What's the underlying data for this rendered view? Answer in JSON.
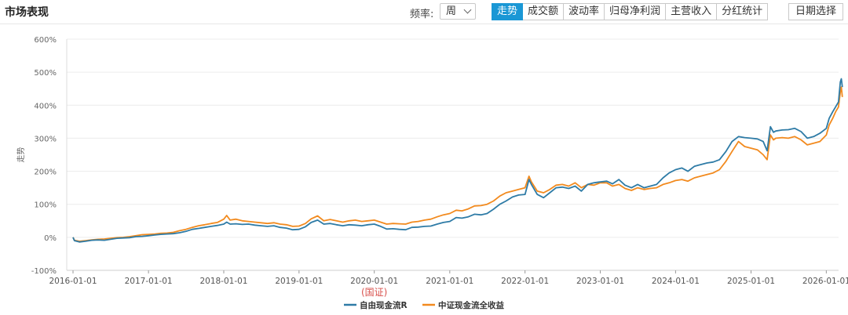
{
  "header": {
    "title": "市场表现",
    "freq_label": "频率:",
    "freq_value": "周",
    "tabs": [
      {
        "label": "走势",
        "active": true
      },
      {
        "label": "成交额",
        "active": false
      },
      {
        "label": "波动率",
        "active": false
      },
      {
        "label": "归母净利润",
        "active": false
      },
      {
        "label": "主营收入",
        "active": false
      },
      {
        "label": "分红统计",
        "active": false
      }
    ],
    "date_button": "日期选择"
  },
  "colors": {
    "series1": "#2e7ba6",
    "series2": "#f28a1e",
    "accent": "#1a97d5"
  },
  "chart_data": {
    "type": "line",
    "ylabel": "走势",
    "ylim": [
      -100,
      600
    ],
    "yticks": [
      "-100%",
      "0%",
      "100%",
      "200%",
      "300%",
      "400%",
      "500%",
      "600%"
    ],
    "xticks": [
      "2016-01-01",
      "2017-01-01",
      "2018-01-01",
      "2019-01-01",
      "2020-01-01",
      "2021-01-01",
      "2022-01-01",
      "2023-01-01",
      "2024-01-01",
      "2025-01-01",
      "2026-01-01"
    ],
    "xlim": [
      "2016-01-01",
      "2026-04-01"
    ],
    "annotation": "(国证)",
    "legend_position": "bottom-center",
    "series": [
      {
        "name": "自由现金流R",
        "color": "#2e7ba6",
        "points": [
          [
            "2016-01-01",
            0
          ],
          [
            "2016-01-08",
            -10
          ],
          [
            "2016-02-01",
            -14
          ],
          [
            "2016-03-01",
            -12
          ],
          [
            "2016-04-01",
            -9
          ],
          [
            "2016-05-01",
            -8
          ],
          [
            "2016-06-01",
            -9
          ],
          [
            "2016-07-01",
            -6
          ],
          [
            "2016-08-01",
            -3
          ],
          [
            "2016-09-01",
            -2
          ],
          [
            "2016-10-01",
            -1
          ],
          [
            "2016-11-01",
            2
          ],
          [
            "2016-12-01",
            3
          ],
          [
            "2017-01-01",
            5
          ],
          [
            "2017-02-01",
            7
          ],
          [
            "2017-03-01",
            9
          ],
          [
            "2017-04-01",
            10
          ],
          [
            "2017-05-01",
            11
          ],
          [
            "2017-06-01",
            14
          ],
          [
            "2017-07-01",
            18
          ],
          [
            "2017-08-01",
            24
          ],
          [
            "2017-09-01",
            27
          ],
          [
            "2017-10-01",
            30
          ],
          [
            "2017-11-01",
            33
          ],
          [
            "2017-12-01",
            36
          ],
          [
            "2018-01-01",
            40
          ],
          [
            "2018-01-15",
            46
          ],
          [
            "2018-02-01",
            40
          ],
          [
            "2018-03-01",
            41
          ],
          [
            "2018-04-01",
            39
          ],
          [
            "2018-05-01",
            40
          ],
          [
            "2018-06-01",
            37
          ],
          [
            "2018-07-01",
            35
          ],
          [
            "2018-08-01",
            33
          ],
          [
            "2018-09-01",
            35
          ],
          [
            "2018-10-01",
            30
          ],
          [
            "2018-11-01",
            28
          ],
          [
            "2018-12-01",
            23
          ],
          [
            "2019-01-01",
            24
          ],
          [
            "2019-02-01",
            32
          ],
          [
            "2019-03-01",
            45
          ],
          [
            "2019-04-01",
            52
          ],
          [
            "2019-05-01",
            40
          ],
          [
            "2019-06-01",
            42
          ],
          [
            "2019-07-01",
            38
          ],
          [
            "2019-08-01",
            35
          ],
          [
            "2019-09-01",
            38
          ],
          [
            "2019-10-01",
            37
          ],
          [
            "2019-11-01",
            35
          ],
          [
            "2019-12-01",
            38
          ],
          [
            "2020-01-01",
            40
          ],
          [
            "2020-02-01",
            33
          ],
          [
            "2020-03-01",
            25
          ],
          [
            "2020-04-01",
            26
          ],
          [
            "2020-05-01",
            24
          ],
          [
            "2020-06-01",
            23
          ],
          [
            "2020-07-01",
            30
          ],
          [
            "2020-08-01",
            31
          ],
          [
            "2020-09-01",
            33
          ],
          [
            "2020-10-01",
            34
          ],
          [
            "2020-11-01",
            40
          ],
          [
            "2020-12-01",
            45
          ],
          [
            "2021-01-01",
            48
          ],
          [
            "2021-02-01",
            60
          ],
          [
            "2021-03-01",
            58
          ],
          [
            "2021-04-01",
            62
          ],
          [
            "2021-05-01",
            70
          ],
          [
            "2021-06-01",
            68
          ],
          [
            "2021-07-01",
            72
          ],
          [
            "2021-08-01",
            85
          ],
          [
            "2021-09-01",
            100
          ],
          [
            "2021-10-01",
            110
          ],
          [
            "2021-11-01",
            122
          ],
          [
            "2021-12-01",
            128
          ],
          [
            "2022-01-01",
            130
          ],
          [
            "2022-01-20",
            175
          ],
          [
            "2022-02-01",
            160
          ],
          [
            "2022-03-01",
            130
          ],
          [
            "2022-04-01",
            120
          ],
          [
            "2022-05-01",
            135
          ],
          [
            "2022-06-01",
            150
          ],
          [
            "2022-07-01",
            152
          ],
          [
            "2022-08-01",
            148
          ],
          [
            "2022-09-01",
            155
          ],
          [
            "2022-10-01",
            140
          ],
          [
            "2022-11-01",
            160
          ],
          [
            "2022-12-01",
            165
          ],
          [
            "2023-01-01",
            168
          ],
          [
            "2023-02-01",
            170
          ],
          [
            "2023-03-01",
            162
          ],
          [
            "2023-04-01",
            175
          ],
          [
            "2023-05-01",
            158
          ],
          [
            "2023-06-01",
            150
          ],
          [
            "2023-07-01",
            160
          ],
          [
            "2023-08-01",
            150
          ],
          [
            "2023-09-01",
            155
          ],
          [
            "2023-10-01",
            160
          ],
          [
            "2023-11-01",
            180
          ],
          [
            "2023-12-01",
            195
          ],
          [
            "2024-01-01",
            205
          ],
          [
            "2024-02-01",
            210
          ],
          [
            "2024-03-01",
            200
          ],
          [
            "2024-04-01",
            215
          ],
          [
            "2024-05-01",
            220
          ],
          [
            "2024-06-01",
            225
          ],
          [
            "2024-07-01",
            228
          ],
          [
            "2024-08-01",
            235
          ],
          [
            "2024-09-01",
            260
          ],
          [
            "2024-10-01",
            290
          ],
          [
            "2024-11-01",
            305
          ],
          [
            "2024-12-01",
            302
          ],
          [
            "2025-01-01",
            300
          ],
          [
            "2025-02-01",
            298
          ],
          [
            "2025-03-01",
            290
          ],
          [
            "2025-03-20",
            262
          ],
          [
            "2025-04-05",
            335
          ],
          [
            "2025-04-20",
            318
          ],
          [
            "2025-05-01",
            322
          ],
          [
            "2025-06-01",
            325
          ],
          [
            "2025-07-01",
            326
          ],
          [
            "2025-08-01",
            330
          ],
          [
            "2025-09-01",
            320
          ],
          [
            "2025-10-01",
            300
          ],
          [
            "2025-11-01",
            305
          ],
          [
            "2025-12-01",
            315
          ],
          [
            "2026-01-01",
            330
          ],
          [
            "2026-01-15",
            360
          ],
          [
            "2026-02-01",
            380
          ],
          [
            "2026-02-15",
            395
          ],
          [
            "2026-03-01",
            410
          ],
          [
            "2026-03-10",
            470
          ],
          [
            "2026-03-15",
            480
          ],
          [
            "2026-03-20",
            455
          ]
        ]
      },
      {
        "name": "中证现金流全收益",
        "color": "#f28a1e",
        "points": [
          [
            "2016-01-01",
            0
          ],
          [
            "2016-01-08",
            -9
          ],
          [
            "2016-02-01",
            -12
          ],
          [
            "2016-03-01",
            -10
          ],
          [
            "2016-04-01",
            -8
          ],
          [
            "2016-05-01",
            -6
          ],
          [
            "2016-06-01",
            -5
          ],
          [
            "2016-07-01",
            -3
          ],
          [
            "2016-08-01",
            -1
          ],
          [
            "2016-09-01",
            0
          ],
          [
            "2016-10-01",
            2
          ],
          [
            "2016-11-01",
            5
          ],
          [
            "2016-12-01",
            8
          ],
          [
            "2017-01-01",
            9
          ],
          [
            "2017-02-01",
            10
          ],
          [
            "2017-03-01",
            12
          ],
          [
            "2017-04-01",
            13
          ],
          [
            "2017-05-01",
            15
          ],
          [
            "2017-06-01",
            20
          ],
          [
            "2017-07-01",
            24
          ],
          [
            "2017-08-01",
            30
          ],
          [
            "2017-09-01",
            35
          ],
          [
            "2017-10-01",
            38
          ],
          [
            "2017-11-01",
            42
          ],
          [
            "2017-12-01",
            45
          ],
          [
            "2018-01-01",
            55
          ],
          [
            "2018-01-15",
            66
          ],
          [
            "2018-02-01",
            52
          ],
          [
            "2018-03-01",
            55
          ],
          [
            "2018-04-01",
            50
          ],
          [
            "2018-05-01",
            48
          ],
          [
            "2018-06-01",
            46
          ],
          [
            "2018-07-01",
            44
          ],
          [
            "2018-08-01",
            42
          ],
          [
            "2018-09-01",
            44
          ],
          [
            "2018-10-01",
            40
          ],
          [
            "2018-11-01",
            38
          ],
          [
            "2018-12-01",
            33
          ],
          [
            "2019-01-01",
            34
          ],
          [
            "2019-02-01",
            42
          ],
          [
            "2019-03-01",
            56
          ],
          [
            "2019-04-01",
            65
          ],
          [
            "2019-05-01",
            50
          ],
          [
            "2019-06-01",
            54
          ],
          [
            "2019-07-01",
            50
          ],
          [
            "2019-08-01",
            46
          ],
          [
            "2019-09-01",
            50
          ],
          [
            "2019-10-01",
            52
          ],
          [
            "2019-11-01",
            48
          ],
          [
            "2019-12-01",
            50
          ],
          [
            "2020-01-01",
            52
          ],
          [
            "2020-02-01",
            46
          ],
          [
            "2020-03-01",
            40
          ],
          [
            "2020-04-01",
            42
          ],
          [
            "2020-05-01",
            41
          ],
          [
            "2020-06-01",
            40
          ],
          [
            "2020-07-01",
            46
          ],
          [
            "2020-08-01",
            48
          ],
          [
            "2020-09-01",
            52
          ],
          [
            "2020-10-01",
            55
          ],
          [
            "2020-11-01",
            62
          ],
          [
            "2020-12-01",
            68
          ],
          [
            "2021-01-01",
            72
          ],
          [
            "2021-02-01",
            82
          ],
          [
            "2021-03-01",
            80
          ],
          [
            "2021-04-01",
            86
          ],
          [
            "2021-05-01",
            95
          ],
          [
            "2021-06-01",
            96
          ],
          [
            "2021-07-01",
            100
          ],
          [
            "2021-08-01",
            110
          ],
          [
            "2021-09-01",
            125
          ],
          [
            "2021-10-01",
            135
          ],
          [
            "2021-11-01",
            140
          ],
          [
            "2021-12-01",
            145
          ],
          [
            "2022-01-01",
            150
          ],
          [
            "2022-01-20",
            185
          ],
          [
            "2022-02-01",
            168
          ],
          [
            "2022-03-01",
            140
          ],
          [
            "2022-04-01",
            135
          ],
          [
            "2022-05-01",
            145
          ],
          [
            "2022-06-01",
            158
          ],
          [
            "2022-07-01",
            160
          ],
          [
            "2022-08-01",
            155
          ],
          [
            "2022-09-01",
            165
          ],
          [
            "2022-10-01",
            150
          ],
          [
            "2022-11-01",
            160
          ],
          [
            "2022-12-01",
            158
          ],
          [
            "2023-01-01",
            165
          ],
          [
            "2023-02-01",
            165
          ],
          [
            "2023-03-01",
            155
          ],
          [
            "2023-04-01",
            160
          ],
          [
            "2023-05-01",
            148
          ],
          [
            "2023-06-01",
            142
          ],
          [
            "2023-07-01",
            150
          ],
          [
            "2023-08-01",
            145
          ],
          [
            "2023-09-01",
            148
          ],
          [
            "2023-10-01",
            150
          ],
          [
            "2023-11-01",
            160
          ],
          [
            "2023-12-01",
            165
          ],
          [
            "2024-01-01",
            172
          ],
          [
            "2024-02-01",
            175
          ],
          [
            "2024-03-01",
            170
          ],
          [
            "2024-04-01",
            180
          ],
          [
            "2024-05-01",
            185
          ],
          [
            "2024-06-01",
            190
          ],
          [
            "2024-07-01",
            195
          ],
          [
            "2024-08-01",
            205
          ],
          [
            "2024-09-01",
            230
          ],
          [
            "2024-10-01",
            260
          ],
          [
            "2024-11-01",
            290
          ],
          [
            "2024-12-01",
            275
          ],
          [
            "2025-01-01",
            270
          ],
          [
            "2025-02-01",
            265
          ],
          [
            "2025-03-01",
            250
          ],
          [
            "2025-03-20",
            235
          ],
          [
            "2025-04-05",
            310
          ],
          [
            "2025-04-20",
            295
          ],
          [
            "2025-05-01",
            300
          ],
          [
            "2025-06-01",
            302
          ],
          [
            "2025-07-01",
            300
          ],
          [
            "2025-08-01",
            305
          ],
          [
            "2025-09-01",
            295
          ],
          [
            "2025-10-01",
            280
          ],
          [
            "2025-11-01",
            285
          ],
          [
            "2025-12-01",
            290
          ],
          [
            "2026-01-01",
            310
          ],
          [
            "2026-01-15",
            340
          ],
          [
            "2026-02-01",
            360
          ],
          [
            "2026-02-15",
            380
          ],
          [
            "2026-03-01",
            395
          ],
          [
            "2026-03-10",
            440
          ],
          [
            "2026-03-15",
            455
          ],
          [
            "2026-03-20",
            425
          ]
        ]
      }
    ]
  }
}
